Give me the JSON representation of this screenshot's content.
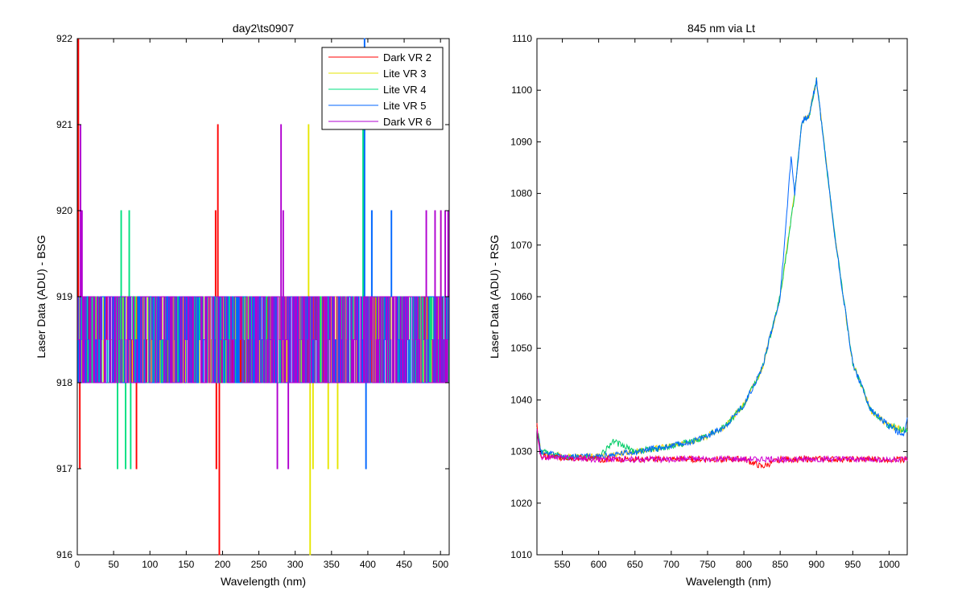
{
  "chart_data": [
    {
      "type": "line",
      "title": "day2\\ts0907",
      "xlabel": "Wavelength (nm)",
      "ylabel": "Laser Data (ADU) - BSG",
      "xlim": [
        0,
        512
      ],
      "ylim": [
        916,
        922
      ],
      "xticks": [
        0,
        50,
        100,
        150,
        200,
        250,
        300,
        350,
        400,
        450,
        500
      ],
      "yticks": [
        916,
        917,
        918,
        919,
        920,
        921,
        922
      ],
      "grid": false,
      "legend_position": "top-right",
      "baseline": [
        918,
        919
      ],
      "series": [
        {
          "name": "Dark VR 2",
          "color": "#ff0000",
          "spikes": [
            [
              1,
              922
            ],
            [
              3,
              917
            ],
            [
              191,
              917
            ],
            [
              193,
              921
            ],
            [
              195,
              916
            ],
            [
              81,
              917
            ],
            [
              190,
              920
            ]
          ]
        },
        {
          "name": "Lite VR 3",
          "color": "#e6e600",
          "spikes": [
            [
              318,
              921
            ],
            [
              320,
              916
            ],
            [
              324,
              917
            ],
            [
              345,
              917
            ],
            [
              358,
              917
            ],
            [
              500,
              920
            ]
          ]
        },
        {
          "name": "Lite VR 4",
          "color": "#00e080",
          "spikes": [
            [
              55,
              917
            ],
            [
              60,
              920
            ],
            [
              66,
              917
            ],
            [
              71,
              920
            ],
            [
              73,
              917
            ],
            [
              393,
              921
            ],
            [
              398,
              918
            ]
          ]
        },
        {
          "name": "Lite VR 5",
          "color": "#0066ff",
          "spikes": [
            [
              395,
              922
            ],
            [
              397,
              917
            ],
            [
              405,
              920
            ],
            [
              418,
              919
            ],
            [
              432,
              920
            ],
            [
              440,
              918
            ]
          ]
        },
        {
          "name": "Dark VR 6",
          "color": "#b000d0",
          "spikes": [
            [
              4,
              921
            ],
            [
              6,
              920
            ],
            [
              275,
              917
            ],
            [
              280,
              921
            ],
            [
              283,
              920
            ],
            [
              290,
              917
            ],
            [
              480,
              920
            ],
            [
              492,
              920
            ],
            [
              500,
              920
            ],
            [
              506,
              920
            ],
            [
              510,
              920
            ]
          ]
        }
      ]
    },
    {
      "type": "line",
      "title": "845 nm via Lt",
      "xlabel": "Wavelength (nm)",
      "ylabel": "Laser Data (ADU) - RSG",
      "xlim": [
        515,
        1025
      ],
      "ylim": [
        1010,
        1110
      ],
      "xticks": [
        550,
        600,
        650,
        700,
        750,
        800,
        850,
        900,
        950,
        1000
      ],
      "yticks": [
        1010,
        1020,
        1030,
        1040,
        1050,
        1060,
        1070,
        1080,
        1090,
        1100,
        1110
      ],
      "grid": false,
      "series": [
        {
          "color": "#ffd000",
          "x": [
            515,
            520,
            550,
            600,
            650,
            700,
            730,
            750,
            775,
            800,
            825,
            850,
            870,
            880,
            890,
            900,
            910,
            925,
            950,
            975,
            1000,
            1025
          ],
          "y": [
            1035,
            1030,
            1029,
            1029,
            1030,
            1031,
            1032,
            1033,
            1035,
            1039,
            1046,
            1060,
            1080,
            1094,
            1095,
            1102,
            1090,
            1072,
            1047,
            1038,
            1035,
            1034
          ]
        },
        {
          "color": "#00cc66",
          "x": [
            515,
            520,
            550,
            600,
            620,
            650,
            700,
            730,
            750,
            775,
            800,
            825,
            850,
            870,
            880,
            890,
            900,
            910,
            925,
            950,
            975,
            1000,
            1025
          ],
          "y": [
            1035,
            1030,
            1029,
            1029,
            1032,
            1030,
            1031,
            1032,
            1033,
            1035,
            1039,
            1046,
            1060,
            1080,
            1094,
            1095,
            1102,
            1090,
            1072,
            1047,
            1038,
            1035,
            1034
          ]
        },
        {
          "color": "#0066ff",
          "x": [
            515,
            520,
            550,
            600,
            650,
            700,
            730,
            750,
            775,
            800,
            825,
            850,
            865,
            870,
            880,
            890,
            900,
            910,
            925,
            950,
            975,
            1000,
            1020,
            1025
          ],
          "y": [
            1035,
            1030,
            1029,
            1029,
            1030,
            1031,
            1032,
            1033,
            1035,
            1039,
            1046,
            1060,
            1087,
            1080,
            1094,
            1095,
            1102,
            1090,
            1072,
            1047,
            1038,
            1035,
            1033,
            1036
          ]
        },
        {
          "color": "#ff0000",
          "x": [
            515,
            520,
            600,
            700,
            800,
            825,
            850,
            900,
            1000,
            1025
          ],
          "y": [
            1035,
            1029,
            1028.5,
            1028.5,
            1028.5,
            1027,
            1028.5,
            1028.5,
            1028.5,
            1028.5
          ]
        },
        {
          "color": "#d000d0",
          "x": [
            515,
            520,
            600,
            700,
            800,
            900,
            1000,
            1025
          ],
          "y": [
            1034,
            1029,
            1028.5,
            1028.5,
            1028.5,
            1028.5,
            1028.5,
            1028.5
          ]
        }
      ]
    }
  ]
}
